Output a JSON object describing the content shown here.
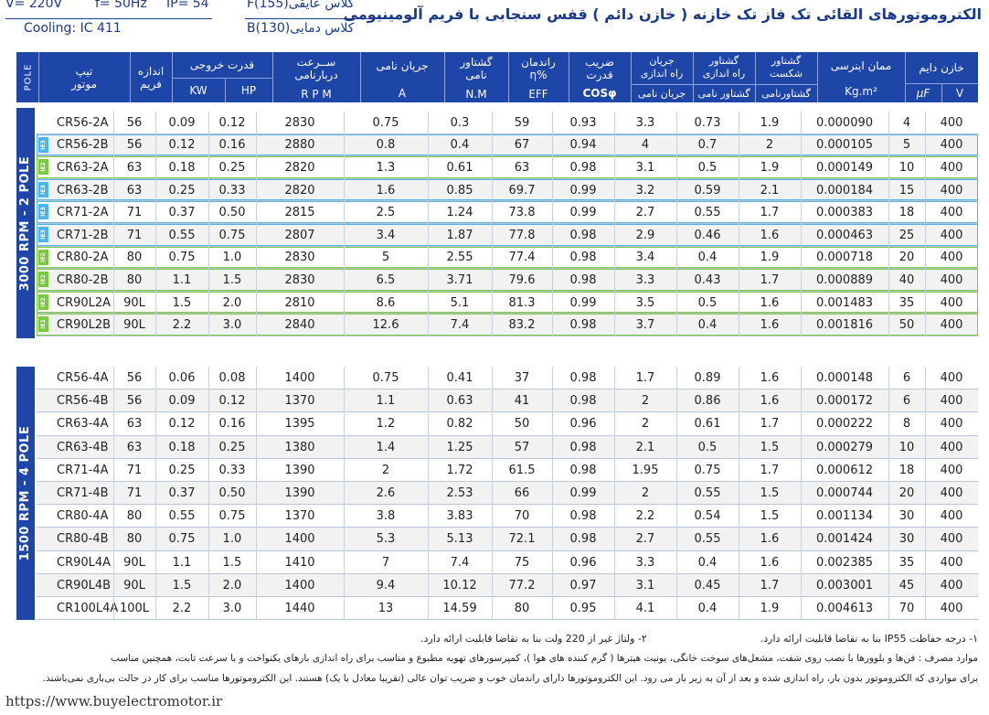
{
  "spec": {
    "voltage": "V= 220V",
    "frequency": "f= 50Hz",
    "ip": "IP= 54",
    "cooling": "Cooling: IC 411",
    "insulation": "کلاس عایقی(F(155",
    "temp_class": "کلاس دمایی(B(130"
  },
  "title": "الکتروموتورهای القائی تک فاز تک خازنه ( خازن دائم ) قفس سنجابی با فریم آلومینیومی",
  "header": {
    "pole": "POLE",
    "type": "تیپ\nموتور",
    "frame": "اندازه\nفریم",
    "output": "قدرت خروجی",
    "kw": "KW",
    "hp": "HP",
    "speed": "ســرعت\nدربارنامی",
    "rpm": "R P M",
    "current": "جریان نامی",
    "current_unit": "A",
    "torque": "گشتاور\nنامی",
    "torque_unit": "N.M",
    "eff": "راندمان\n%η",
    "eff_unit": "EFF",
    "pf": "ضریب\nقدرت",
    "pf_unit": "COSφ",
    "start_current": "جریان\nراه اندازی",
    "start_current_sub": "جریان نامی",
    "start_torque": "گشتاور\nراه اندازی",
    "start_torque_sub": "گشتاور نامی",
    "break_torque": "گشتاور\nشکست",
    "break_torque_sub": "گشتاورنامی",
    "inertia": "ممان اینرسی",
    "inertia_unit": "Kg.m²",
    "cap": "خازن دایم",
    "cap_uf": "μF",
    "cap_v": "V"
  },
  "block1_label": "3000 RPM - 2 POLE",
  "block2_label": "1500 RPM - 4 POLE",
  "rows_2pole": [
    {
      "ie": "",
      "type": "CR56-2A",
      "frame": "56",
      "kw": "0.09",
      "hp": "0.12",
      "rpm": "2830",
      "a": "0.75",
      "nm": "0.3",
      "eff": "59",
      "pf": "0.93",
      "ist": "3.3",
      "tst": "0.73",
      "tbr": "1.9",
      "j": "0.000090",
      "uf": "4",
      "v": "400"
    },
    {
      "ie": "IE3",
      "type": "CR56-2B",
      "frame": "56",
      "kw": "0.12",
      "hp": "0.16",
      "rpm": "2880",
      "a": "0.8",
      "nm": "0.4",
      "eff": "67",
      "pf": "0.94",
      "ist": "4",
      "tst": "0.7",
      "tbr": "2",
      "j": "0.000105",
      "uf": "5",
      "v": "400"
    },
    {
      "ie": "IE2",
      "type": "CR63-2A",
      "frame": "63",
      "kw": "0.18",
      "hp": "0.25",
      "rpm": "2820",
      "a": "1.3",
      "nm": "0.61",
      "eff": "63",
      "pf": "0.98",
      "ist": "3.1",
      "tst": "0.5",
      "tbr": "1.9",
      "j": "0.000149",
      "uf": "10",
      "v": "400"
    },
    {
      "ie": "IE3",
      "type": "CR63-2B",
      "frame": "63",
      "kw": "0.25",
      "hp": "0.33",
      "rpm": "2820",
      "a": "1.6",
      "nm": "0.85",
      "eff": "69.7",
      "pf": "0.99",
      "ist": "3.2",
      "tst": "0.59",
      "tbr": "2.1",
      "j": "0.000184",
      "uf": "15",
      "v": "400"
    },
    {
      "ie": "IE3",
      "type": "CR71-2A",
      "frame": "71",
      "kw": "0.37",
      "hp": "0.50",
      "rpm": "2815",
      "a": "2.5",
      "nm": "1.24",
      "eff": "73.8",
      "pf": "0.99",
      "ist": "2.7",
      "tst": "0.55",
      "tbr": "1.7",
      "j": "0.000383",
      "uf": "18",
      "v": "400"
    },
    {
      "ie": "IE3",
      "type": "CR71-2B",
      "frame": "71",
      "kw": "0.55",
      "hp": "0.75",
      "rpm": "2807",
      "a": "3.4",
      "nm": "1.87",
      "eff": "77.8",
      "pf": "0.98",
      "ist": "2.9",
      "tst": "0.46",
      "tbr": "1.6",
      "j": "0.000463",
      "uf": "25",
      "v": "400"
    },
    {
      "ie": "IE2",
      "type": "CR80-2A",
      "frame": "80",
      "kw": "0.75",
      "hp": "1.0",
      "rpm": "2830",
      "a": "5",
      "nm": "2.55",
      "eff": "77.4",
      "pf": "0.98",
      "ist": "3.4",
      "tst": "0.4",
      "tbr": "1.9",
      "j": "0.000718",
      "uf": "20",
      "v": "400"
    },
    {
      "ie": "IE2",
      "type": "CR80-2B",
      "frame": "80",
      "kw": "1.1",
      "hp": "1.5",
      "rpm": "2830",
      "a": "6.5",
      "nm": "3.71",
      "eff": "79.6",
      "pf": "0.98",
      "ist": "3.3",
      "tst": "0.43",
      "tbr": "1.7",
      "j": "0.000889",
      "uf": "40",
      "v": "400"
    },
    {
      "ie": "IE2",
      "type": "CR90L2A",
      "frame": "90L",
      "kw": "1.5",
      "hp": "2.0",
      "rpm": "2810",
      "a": "8.6",
      "nm": "5.1",
      "eff": "81.3",
      "pf": "0.99",
      "ist": "3.5",
      "tst": "0.5",
      "tbr": "1.6",
      "j": "0.001483",
      "uf": "35",
      "v": "400"
    },
    {
      "ie": "IE2",
      "type": "CR90L2B",
      "frame": "90L",
      "kw": "2.2",
      "hp": "3.0",
      "rpm": "2840",
      "a": "12.6",
      "nm": "7.4",
      "eff": "83.2",
      "pf": "0.98",
      "ist": "3.7",
      "tst": "0.4",
      "tbr": "1.6",
      "j": "0.001816",
      "uf": "50",
      "v": "400"
    }
  ],
  "rows_4pole": [
    {
      "ie": "",
      "type": "CR56-4A",
      "frame": "56",
      "kw": "0.06",
      "hp": "0.08",
      "rpm": "1400",
      "a": "0.75",
      "nm": "0.41",
      "eff": "37",
      "pf": "0.98",
      "ist": "1.7",
      "tst": "0.89",
      "tbr": "1.6",
      "j": "0.000148",
      "uf": "6",
      "v": "400"
    },
    {
      "ie": "",
      "type": "CR56-4B",
      "frame": "56",
      "kw": "0.09",
      "hp": "0.12",
      "rpm": "1370",
      "a": "1.1",
      "nm": "0.63",
      "eff": "41",
      "pf": "0.98",
      "ist": "2",
      "tst": "0.86",
      "tbr": "1.6",
      "j": "0.000172",
      "uf": "6",
      "v": "400"
    },
    {
      "ie": "",
      "type": "CR63-4A",
      "frame": "63",
      "kw": "0.12",
      "hp": "0.16",
      "rpm": "1395",
      "a": "1.2",
      "nm": "0.82",
      "eff": "50",
      "pf": "0.96",
      "ist": "2",
      "tst": "0.61",
      "tbr": "1.7",
      "j": "0.000222",
      "uf": "8",
      "v": "400"
    },
    {
      "ie": "",
      "type": "CR63-4B",
      "frame": "63",
      "kw": "0.18",
      "hp": "0.25",
      "rpm": "1380",
      "a": "1.4",
      "nm": "1.25",
      "eff": "57",
      "pf": "0.98",
      "ist": "2.1",
      "tst": "0.5",
      "tbr": "1.5",
      "j": "0.000279",
      "uf": "10",
      "v": "400"
    },
    {
      "ie": "",
      "type": "CR71-4A",
      "frame": "71",
      "kw": "0.25",
      "hp": "0.33",
      "rpm": "1390",
      "a": "2",
      "nm": "1.72",
      "eff": "61.5",
      "pf": "0.98",
      "ist": "1.95",
      "tst": "0.75",
      "tbr": "1.7",
      "j": "0.000612",
      "uf": "18",
      "v": "400"
    },
    {
      "ie": "",
      "type": "CR71-4B",
      "frame": "71",
      "kw": "0.37",
      "hp": "0.50",
      "rpm": "1390",
      "a": "2.6",
      "nm": "2.53",
      "eff": "66",
      "pf": "0.99",
      "ist": "2",
      "tst": "0.55",
      "tbr": "1.5",
      "j": "0.000744",
      "uf": "20",
      "v": "400"
    },
    {
      "ie": "",
      "type": "CR80-4A",
      "frame": "80",
      "kw": "0.55",
      "hp": "0.75",
      "rpm": "1370",
      "a": "3.8",
      "nm": "3.83",
      "eff": "70",
      "pf": "0.98",
      "ist": "2.2",
      "tst": "0.54",
      "tbr": "1.5",
      "j": "0.001134",
      "uf": "30",
      "v": "400"
    },
    {
      "ie": "",
      "type": "CR80-4B",
      "frame": "80",
      "kw": "0.75",
      "hp": "1.0",
      "rpm": "1400",
      "a": "5.3",
      "nm": "5.13",
      "eff": "72.1",
      "pf": "0.98",
      "ist": "2.7",
      "tst": "0.55",
      "tbr": "1.6",
      "j": "0.001424",
      "uf": "30",
      "v": "400"
    },
    {
      "ie": "",
      "type": "CR90L4A",
      "frame": "90L",
      "kw": "1.1",
      "hp": "1.5",
      "rpm": "1410",
      "a": "7",
      "nm": "7.4",
      "eff": "75",
      "pf": "0.96",
      "ist": "3.3",
      "tst": "0.4",
      "tbr": "1.6",
      "j": "0.002385",
      "uf": "35",
      "v": "400"
    },
    {
      "ie": "",
      "type": "CR90L4B",
      "frame": "90L",
      "kw": "1.5",
      "hp": "2.0",
      "rpm": "1400",
      "a": "9.4",
      "nm": "10.12",
      "eff": "77.2",
      "pf": "0.97",
      "ist": "3.1",
      "tst": "0.45",
      "tbr": "1.7",
      "j": "0.003001",
      "uf": "45",
      "v": "400"
    },
    {
      "ie": "",
      "type": "CR100L4A",
      "frame": "100L",
      "kw": "2.2",
      "hp": "3.0",
      "rpm": "1440",
      "a": "13",
      "nm": "14.59",
      "eff": "80",
      "pf": "0.95",
      "ist": "4.1",
      "tst": "0.4",
      "tbr": "1.9",
      "j": "0.004613",
      "uf": "70",
      "v": "400"
    }
  ],
  "notes": {
    "n1": "۱- درجه حفاظت IP55 بنا به تقاضا قابلیت ارائه دارد.",
    "n2": "۲- ولتاژ غیر از 220 ولت بنا به تقاضا قابلیت ارائه دارد.",
    "usage1": "موارد مصرف : فن‌ها و بلوورها با نصب روی شفت، مشعل‌های سوخت خانگی، یونیت هیترها ( گرم کننده های هوا )، کمپرسورهای تهویه مطبوع و مناسب برای راه اندازی بارهای یکنواخت و با سرعت ثابت، همچنین مناسب",
    "usage2": "برای مواردی که الکتروموتور بدون بار، راه اندازی شده و بعد از آن به زیر بار می رود. این الکتروموتورها دارای راندمان خوب و ضریب توان عالی (تقریبا معادل با یک) هستند. این الکتروموتورها مناسب برای کار در حالت بی‌باری نمی‌باشند."
  },
  "url": "https://www.buyelectromotor.ir",
  "colors": {
    "header": "#1e45a8",
    "ie2": "#7ac943",
    "ie3": "#4fb4e8"
  }
}
